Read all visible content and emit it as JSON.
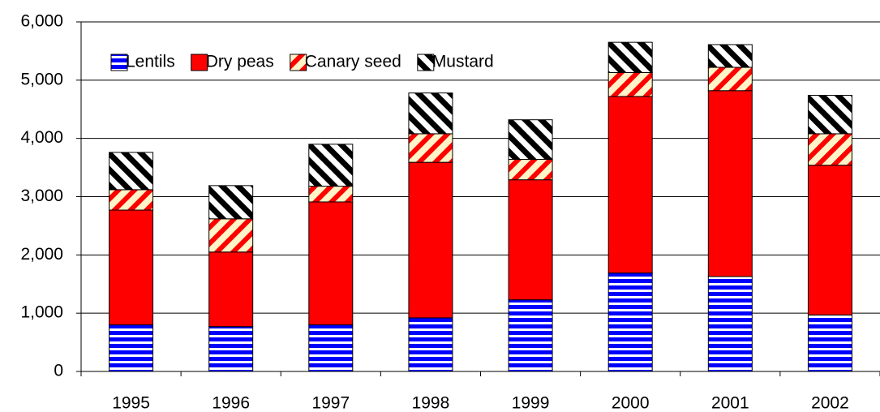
{
  "chart_data": {
    "type": "stacked_bar",
    "categories": [
      "1995",
      "1996",
      "1997",
      "1998",
      "1999",
      "2000",
      "2001",
      "2002"
    ],
    "series": [
      {
        "name": "Lentils",
        "color": "#0000ff",
        "pattern": "horizontal-stripes",
        "values": [
          800,
          770,
          800,
          920,
          1230,
          1690,
          1630,
          970
        ]
      },
      {
        "name": "Dry peas",
        "color": "#ff0000",
        "pattern": "solid",
        "values": [
          1970,
          1280,
          2110,
          2670,
          2060,
          3030,
          3190,
          2570
        ]
      },
      {
        "name": "Canary seed",
        "color": "#ff0000",
        "pattern": "diagonal-stripes-cream",
        "values": [
          350,
          570,
          270,
          490,
          350,
          410,
          400,
          540
        ]
      },
      {
        "name": "Mustard",
        "color": "#000000",
        "pattern": "diagonal-stripes-white",
        "values": [
          640,
          570,
          720,
          700,
          680,
          520,
          390,
          660
        ]
      }
    ],
    "ylim": [
      0,
      6000
    ],
    "yticks": [
      {
        "value": 0,
        "label": "0"
      },
      {
        "value": 1000,
        "label": "1,000"
      },
      {
        "value": 2000,
        "label": "2,000"
      },
      {
        "value": 3000,
        "label": "3,000"
      },
      {
        "value": 4000,
        "label": "4,000"
      },
      {
        "value": 5000,
        "label": "5,000"
      },
      {
        "value": 6000,
        "label": "6,000"
      }
    ],
    "grid": true,
    "legend": "top-left"
  }
}
